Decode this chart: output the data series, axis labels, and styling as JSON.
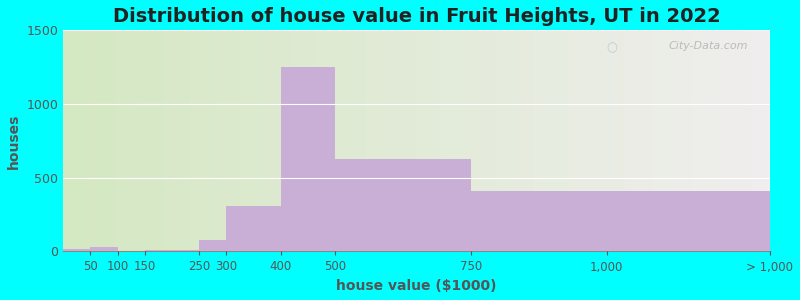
{
  "title": "Distribution of house value in Fruit Heights, UT in 2022",
  "xlabel": "house value ($1000)",
  "ylabel": "houses",
  "bar_edges": [
    0,
    50,
    100,
    150,
    250,
    300,
    400,
    500,
    750,
    1000,
    1300
  ],
  "bar_values": [
    15,
    30,
    5,
    10,
    75,
    310,
    1250,
    625,
    410,
    410
  ],
  "xtick_positions": [
    50,
    100,
    150,
    250,
    300,
    400,
    500,
    750,
    1000,
    1300
  ],
  "xtick_labels": [
    "50",
    "100",
    "150",
    "250",
    "300",
    "400",
    "500",
    "750",
    "1,000",
    "> 1,000"
  ],
  "bar_color": "#c9aed6",
  "bg_color": "#00ffff",
  "plot_bg_left": "#d4e8c2",
  "plot_bg_right": "#f0eeee",
  "ylim": [
    0,
    1500
  ],
  "yticks": [
    0,
    500,
    1000,
    1500
  ],
  "watermark": "City-Data.com",
  "title_fontsize": 14,
  "label_fontsize": 10
}
